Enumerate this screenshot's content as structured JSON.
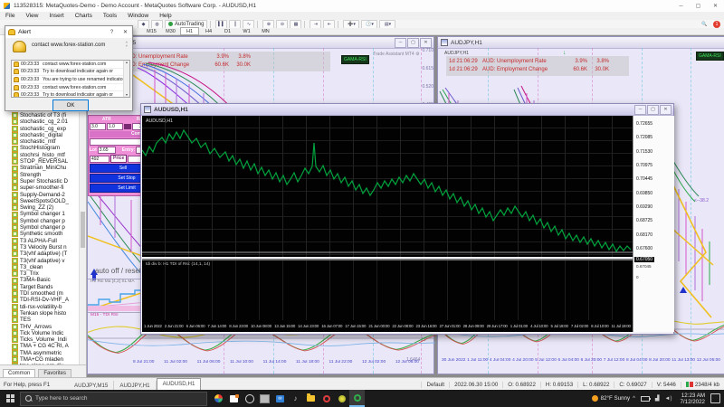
{
  "titlebar": {
    "title": "113528315: MetaQuotes-Demo - Demo Account - MetaQuotes Software Corp. - AUDUSD,H1"
  },
  "icons": {
    "minimize": "─",
    "maximize": "▢",
    "close": "✕",
    "help": "?",
    "scroll_up": "▲",
    "scroll_down": "▼",
    "spin_up": "˄",
    "spin_down": "˅",
    "gear": "⚙",
    "chevron_up": "^",
    "speaker": "◄)",
    "dropdown": "▾"
  },
  "menu": {
    "items": [
      "File",
      "View",
      "Insert",
      "Charts",
      "Tools",
      "Window",
      "Help"
    ]
  },
  "toolbar": {
    "autotrading": "AutoTrading"
  },
  "timeframes": {
    "items": [
      "M15",
      "M30",
      "H1",
      "H4",
      "D1",
      "W1",
      "MN"
    ],
    "active": "H1"
  },
  "alert": {
    "title": "Alert",
    "message": "contact www.forex-station.com",
    "ok": "OK",
    "rows": [
      {
        "time": "00:23:33",
        "text": "contact www.forex-station.com"
      },
      {
        "time": "00:23:33",
        "text": "Try to download indicator again or"
      },
      {
        "time": "00:23:33",
        "text": "You are trying to use renamed indicator"
      },
      {
        "time": "00:23:33",
        "text": "contact www.forex-station.com"
      },
      {
        "time": "00:23:33",
        "text": "Try to download indicator again or"
      }
    ]
  },
  "navigator": {
    "items": [
      "Stochastic of T3 (fi",
      "stochastic_cg_2.01",
      "stochastic_cg_exp",
      "stochastic_digital",
      "stochastic_mtf",
      "StochHistogram",
      "stochrsi_histo_mtf",
      "STOP_REVERSAL",
      "Stratman_MiniChu",
      "Strength",
      "Super Stochastic D",
      "super-smoother-fi",
      "Supply-Demand-2",
      "SweetSpotsGOLD_",
      "Swing_ZZ (2)",
      "Symbol changer 1",
      "Symbol changer p",
      "Symbol changer p",
      "Synthetic smooth",
      "T3 ALPHA-Full",
      "T3 Velocity Burst n",
      "T3(vhf adaptive) (T",
      "T3(vhf adaptive) v",
      "T3_clean",
      "T3_Trix",
      "T3MA-Basic",
      "Target Bands",
      "TDI smoothed (m",
      "TDI-RSI-Dv-VHF_A",
      "tdi-rsx-volatility-b",
      "Tenkan slope histo",
      "TES",
      "THV_Arrows",
      "Tick Volume Indic",
      "Ticks_Volume_Indi",
      "TMA + CG 4C RI, A",
      "TMA asymmetric",
      "TMA+CG mladen",
      "tma-slope-nrp-div"
    ],
    "tabs": [
      "Common",
      "Favorites"
    ]
  },
  "news": {
    "rows": [
      {
        "time": "1d 21:06:29",
        "label": "AUD: Unemployment Rate",
        "prev": "3.9%",
        "val": "3.8%"
      },
      {
        "time": "1d 21:06:29",
        "label": "AUD: Employment Change",
        "prev": "60.6K",
        "val": "30.0K"
      }
    ]
  },
  "left_window": {
    "title": "AUDJPY,M15",
    "trade_assistant": "Trade Assistant MT4",
    "badge": "GAMA-RSI",
    "scale_top": [
      "0.710",
      "0.615",
      "0.520",
      "0.425"
    ],
    "scale_mid": "12",
    "scale_bottom": "1.6464",
    "auto_text": "auto off / reset /",
    "sub1_label": "H1  Rsi Ma [4,2] SL MA",
    "sub2_label": "M15 - TDI RSI",
    "time_axis": [
      "8 Jul 21:00",
      "11 Jul 02:00",
      "11 Jul 06:00",
      "11 Jul 10:00",
      "11 Jul 14:00",
      "11 Jul 18:00",
      "11 Jul 22:00",
      "12 Jul 02:00",
      "12 Jul 06:00"
    ],
    "panel": {
      "col_labels": [
        "ATR",
        "R/SL",
        "Risk %/Ba"
      ],
      "values": [
        "3.0",
        "1.0",
        "2.00"
      ],
      "comment_header": "Comment",
      "comment_value": "Comment",
      "lot_label": "Lot",
      "lot_value": "3.65",
      "entry_label": "Entry:",
      "sl_value": "492",
      "price_btn": "Price",
      "sell_btn": "Sell",
      "set_stop_btn": "Set Stop",
      "set_limit_btn": "Set Limit",
      "buy_btn": "Buy"
    }
  },
  "right_window": {
    "title": "AUDJPY,H1",
    "label": "AUDJPY,H1",
    "badge": "GAMA-RSI",
    "fib_label": "<--38.2",
    "time_axis": [
      "30 Jun 2022",
      "1 Jul 11:00",
      "4 Jul 04:00",
      "4 Jul 20:00",
      "5 Jul 12:00",
      "6 Jul 04:00",
      "6 Jul 20:00",
      "7 Jul 12:00",
      "8 Jul 04:00",
      "8 Jul 20:00",
      "11 Jul 13:00",
      "12 Jul 05:00"
    ]
  },
  "front_window": {
    "title": "AUDUSD,H1",
    "label": "AUDUSD,H1",
    "sub_label": "tdi div b: H1 TDI of Rsi: (14,1, 14)",
    "price_axis": [
      "0.72655",
      "0.72085",
      "0.71530",
      "0.70975",
      "0.70445",
      "0.69850",
      "0.69290",
      "0.68725",
      "0.68170",
      "0.67600"
    ],
    "current_price": "0.67050",
    "price_below": "0.67045",
    "zero": "0",
    "time_axis": [
      "1 Jun 2022",
      "2 Jun 21:00",
      "6 Jun 06:00",
      "7 Jun 14:00",
      "8 Jun 23:00",
      "10 Jun 08:00",
      "13 Jun 15:00",
      "14 Jun 23:00",
      "16 Jun 07:00",
      "17 Jun 15:00",
      "21 Jun 00:00",
      "22 Jun 08:00",
      "23 Jun 16:00",
      "27 Jun 01:00",
      "28 Jun 09:00",
      "29 Jun 17:00",
      "1 Jul 01:00",
      "4 Jul 10:00",
      "5 Jul 18:00",
      "7 Jul 02:00",
      "8 Jul 10:00",
      "11 Jul 19:00"
    ]
  },
  "tabs": {
    "items": [
      "AUDJPY,M15",
      "AUDJPY,H1",
      "AUDUSD,H1"
    ],
    "active": "AUDUSD,H1"
  },
  "statusbar": {
    "help": "For Help, press F1",
    "profile": "Default",
    "datetime": "2022.06.30 15:00",
    "o": "O: 0.68922",
    "h": "H: 0.69153",
    "l": "L: 0.68922",
    "c": "C: 0.69027",
    "v": "V: 5446",
    "kb": "2348/4 kb"
  },
  "taskbar": {
    "search": "Type here to search",
    "weather": "82°F Sunny",
    "time": "12:23 AM",
    "date": "7/12/2022"
  },
  "colors": {
    "accent_green": "#2e9e3f",
    "chart_line": "#00a33e",
    "news_red": "#c42a2a",
    "badge_green": "#3fe05a",
    "alert_gold": "#f2c233"
  }
}
